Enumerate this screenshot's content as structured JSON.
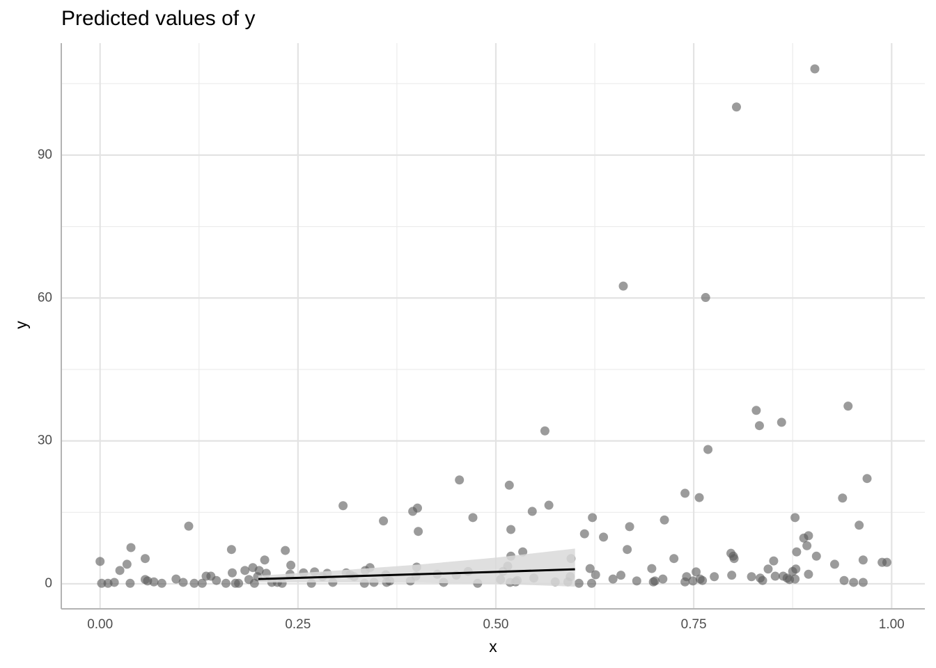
{
  "chart_data": {
    "type": "scatter",
    "title": "Predicted values of y",
    "x_label": "x",
    "y_label": "y",
    "xlim": [
      -0.049,
      1.042
    ],
    "ylim": [
      -5.26,
      113.5
    ],
    "xticks": [
      {
        "value": 0,
        "label": "0.00"
      },
      {
        "value": 0.25,
        "label": "0.25"
      },
      {
        "value": 0.5,
        "label": "0.50"
      },
      {
        "value": 0.75,
        "label": "0.75"
      },
      {
        "value": 1,
        "label": "1.00"
      }
    ],
    "yticks": [
      0,
      30,
      60,
      90
    ],
    "x_minor_ticks": [
      0.125,
      0.375,
      0.625,
      0.875
    ],
    "y_minor_ticks": [
      15,
      45,
      75,
      105
    ],
    "grid": true,
    "point_color": "#595959",
    "x": [
      0.0,
      0.002,
      0.01,
      0.018,
      0.025,
      0.034,
      0.038,
      0.039,
      0.057,
      0.057,
      0.06,
      0.068,
      0.078,
      0.096,
      0.105,
      0.112,
      0.119,
      0.129,
      0.134,
      0.14,
      0.147,
      0.159,
      0.166,
      0.167,
      0.171,
      0.175,
      0.183,
      0.188,
      0.193,
      0.195,
      0.199,
      0.201,
      0.208,
      0.21,
      0.217,
      0.224,
      0.23,
      0.234,
      0.24,
      0.241,
      0.257,
      0.267,
      0.271,
      0.281,
      0.287,
      0.294,
      0.307,
      0.311,
      0.316,
      0.321,
      0.334,
      0.335,
      0.341,
      0.346,
      0.358,
      0.361,
      0.362,
      0.366,
      0.392,
      0.395,
      0.399,
      0.4,
      0.401,
      0.402,
      0.426,
      0.434,
      0.45,
      0.454,
      0.465,
      0.471,
      0.477,
      0.506,
      0.509,
      0.515,
      0.517,
      0.518,
      0.519,
      0.519,
      0.525,
      0.527,
      0.534,
      0.546,
      0.548,
      0.562,
      0.567,
      0.575,
      0.591,
      0.594,
      0.595,
      0.605,
      0.612,
      0.619,
      0.621,
      0.622,
      0.626,
      0.636,
      0.648,
      0.658,
      0.661,
      0.666,
      0.669,
      0.678,
      0.697,
      0.699,
      0.701,
      0.711,
      0.713,
      0.725,
      0.739,
      0.739,
      0.741,
      0.749,
      0.753,
      0.757,
      0.758,
      0.761,
      0.765,
      0.768,
      0.776,
      0.797,
      0.798,
      0.8,
      0.801,
      0.804,
      0.823,
      0.829,
      0.833,
      0.834,
      0.837,
      0.844,
      0.851,
      0.853,
      0.861,
      0.863,
      0.868,
      0.871,
      0.875,
      0.878,
      0.878,
      0.879,
      0.88,
      0.889,
      0.893,
      0.895,
      0.895,
      0.903,
      0.905,
      0.928,
      0.938,
      0.94,
      0.945,
      0.952,
      0.959,
      0.964,
      0.964,
      0.969,
      0.988,
      0.994
    ],
    "y": [
      4.7,
      0.1,
      0.1,
      0.3,
      2.8,
      4.1,
      0.1,
      7.6,
      5.3,
      0.9,
      0.6,
      0.4,
      0.1,
      1.0,
      0.3,
      12.1,
      0.1,
      0.1,
      1.6,
      1.6,
      0.7,
      0.1,
      7.2,
      2.3,
      0.1,
      0.1,
      2.8,
      0.9,
      3.4,
      0.1,
      1.5,
      2.8,
      5.0,
      2.2,
      0.3,
      0.3,
      0.1,
      7.0,
      2.0,
      3.9,
      2.3,
      0.1,
      2.5,
      1.5,
      2.2,
      0.3,
      16.4,
      2.3,
      1.9,
      1.5,
      0.1,
      2.8,
      3.4,
      0.3,
      13.2,
      1.9,
      0.3,
      0.6,
      0.6,
      15.2,
      1.6,
      3.5,
      15.9,
      11.0,
      2.0,
      0.3,
      1.8,
      21.8,
      2.6,
      13.9,
      0.1,
      0.9,
      2.6,
      3.7,
      20.7,
      0.3,
      11.4,
      5.8,
      0.4,
      0.7,
      6.7,
      15.2,
      1.2,
      32.1,
      16.5,
      0.4,
      0.4,
      1.5,
      5.3,
      0.1,
      10.5,
      3.2,
      0.1,
      13.9,
      1.9,
      9.8,
      1.0,
      1.8,
      62.5,
      7.2,
      12.0,
      0.6,
      3.2,
      0.4,
      0.6,
      1.0,
      13.4,
      5.3,
      19.0,
      0.4,
      1.5,
      0.6,
      2.5,
      18.1,
      1.0,
      0.7,
      60.1,
      28.2,
      1.5,
      6.4,
      1.8,
      5.8,
      5.3,
      100.1,
      1.5,
      36.4,
      33.2,
      1.2,
      0.7,
      3.1,
      4.8,
      1.6,
      33.9,
      1.6,
      1.2,
      0.9,
      2.6,
      1.0,
      13.9,
      3.1,
      6.7,
      9.6,
      8.0,
      2.0,
      10.1,
      108.1,
      5.8,
      4.1,
      18.0,
      0.7,
      37.3,
      0.3,
      12.3,
      5.0,
      0.3,
      22.1,
      4.5,
      4.5
    ],
    "line": {
      "color": "#000000",
      "fill": "#d9d9d9",
      "x": [
        0.2,
        0.3,
        0.4,
        0.5,
        0.6
      ],
      "y": [
        1.0,
        1.5,
        2.0,
        2.5,
        3.05
      ],
      "lower": [
        0.3,
        0.3,
        0.2,
        0.0,
        -0.6
      ],
      "upper": [
        1.7,
        2.8,
        4.0,
        5.5,
        7.4
      ]
    }
  }
}
